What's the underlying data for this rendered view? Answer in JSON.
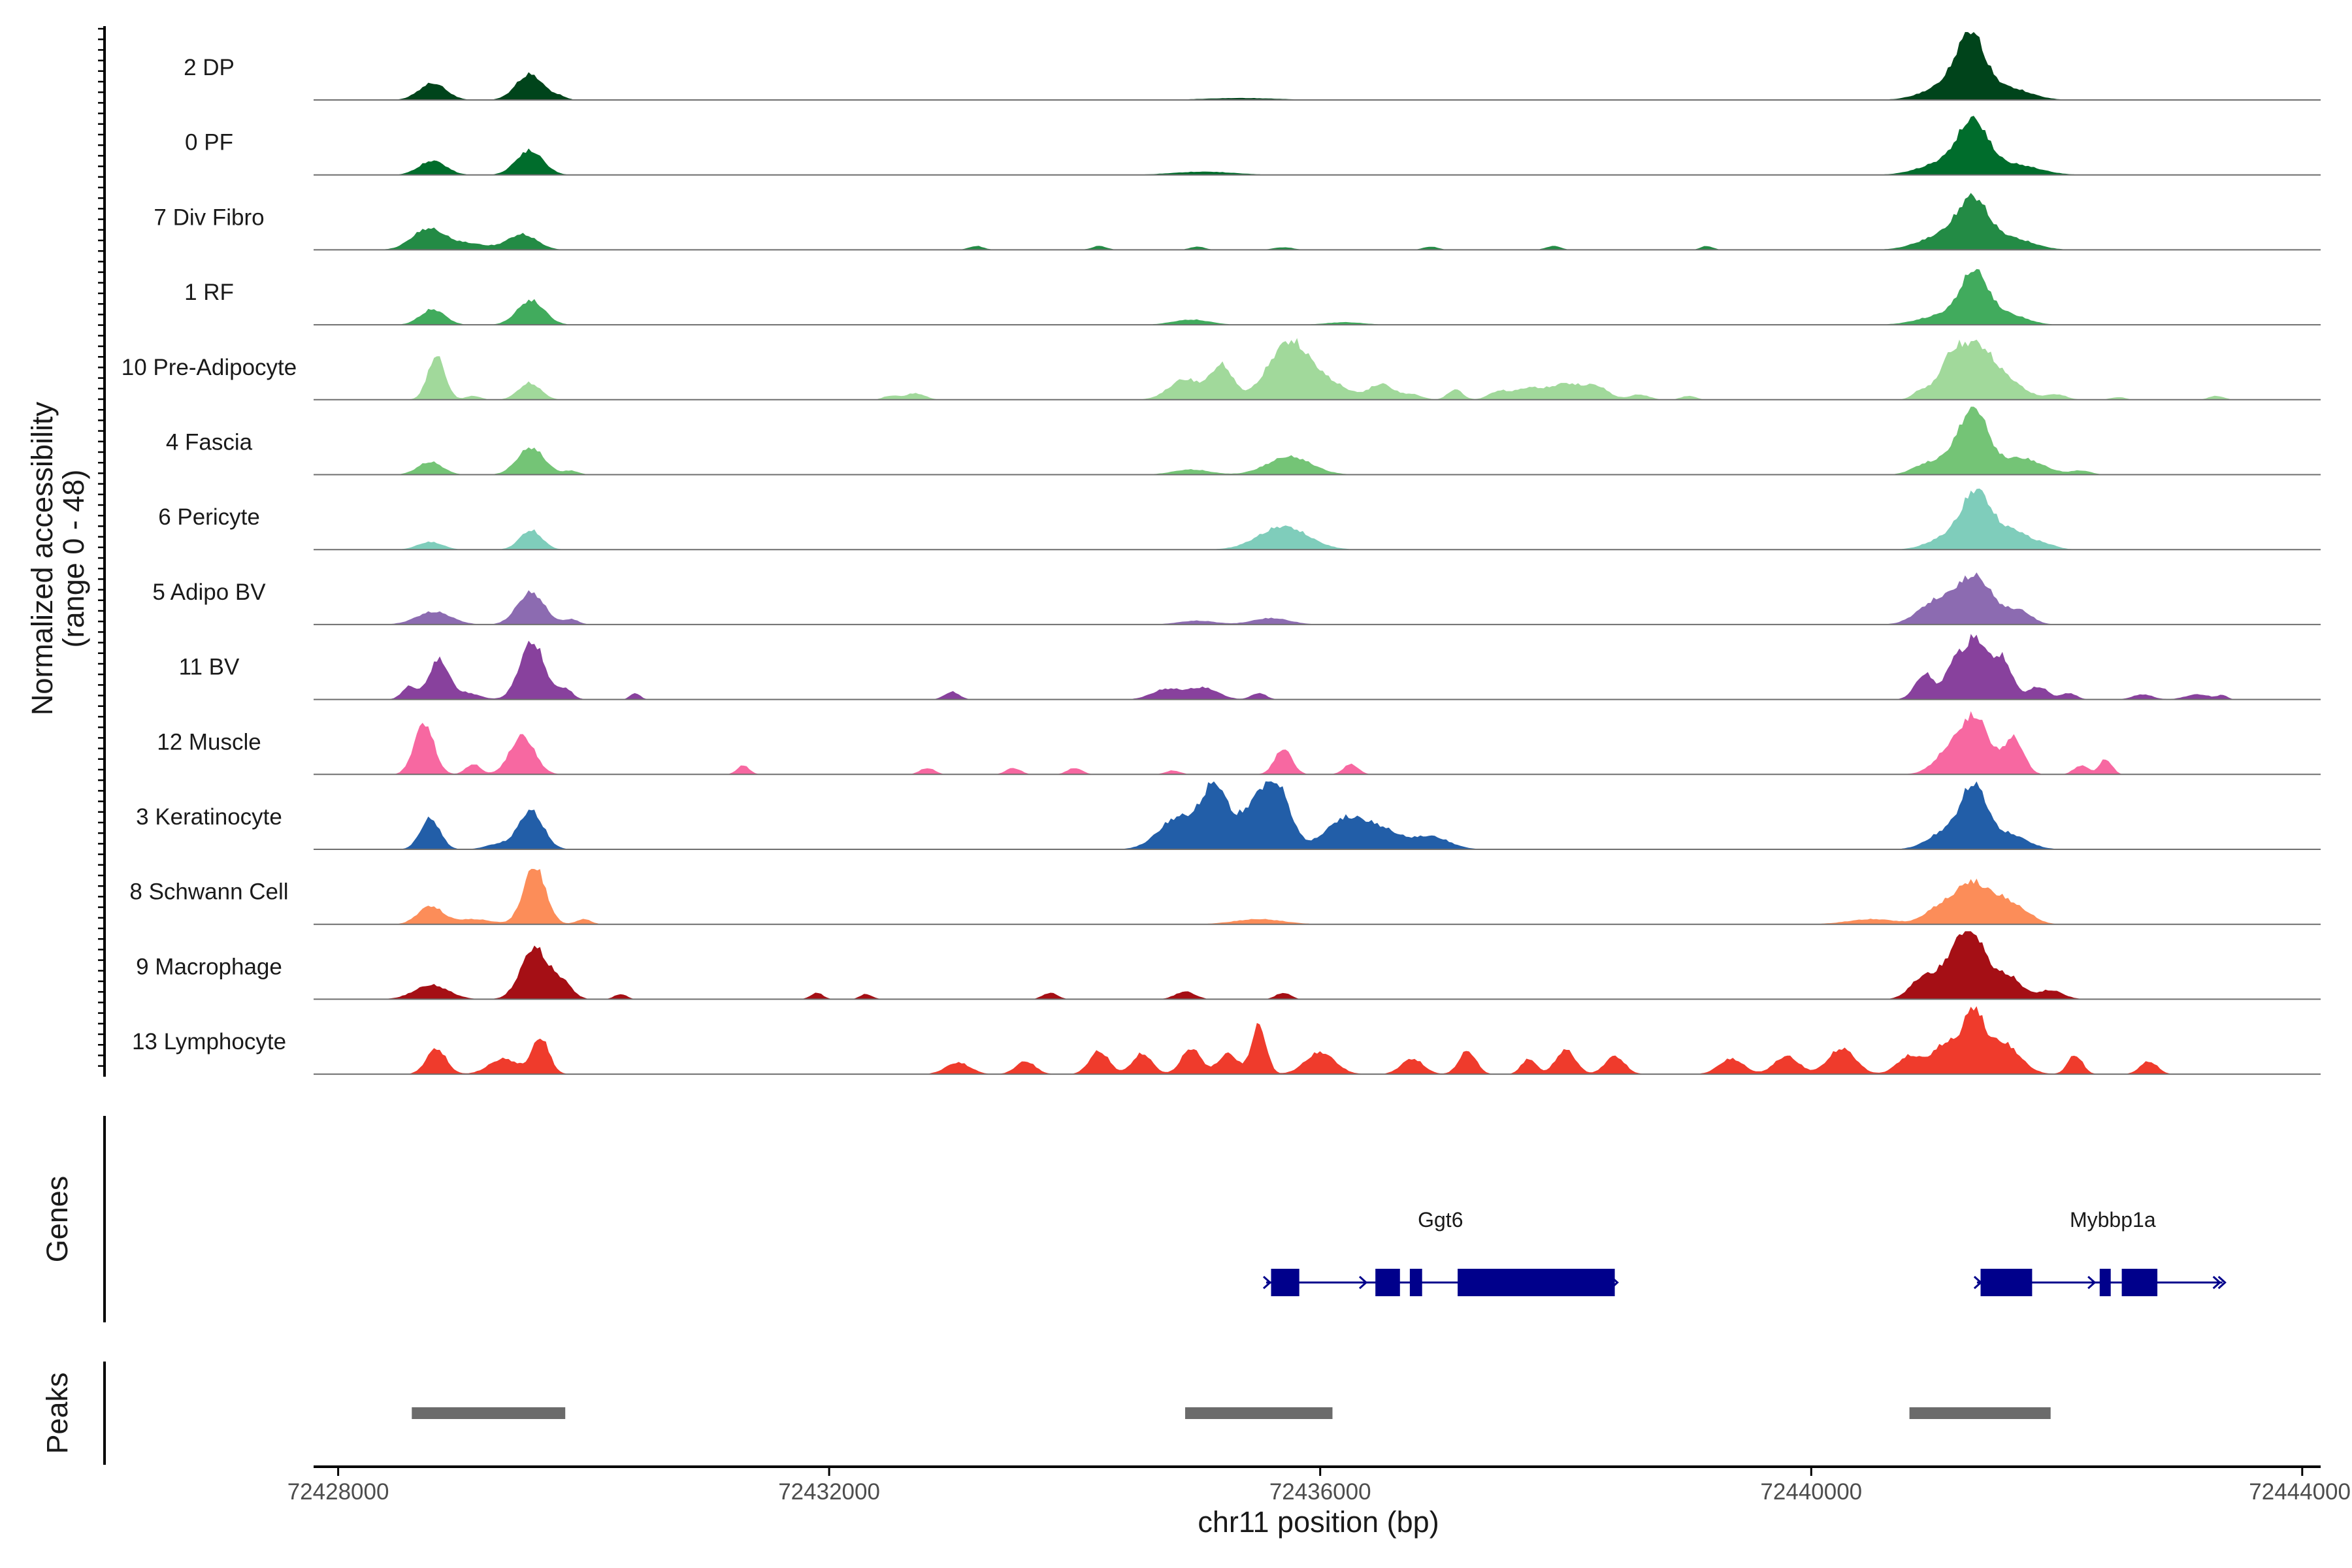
{
  "chart_data": {
    "type": "area",
    "title": "",
    "chromosome": "chr11",
    "xlabel": "chr11 position (bp)",
    "ylabel": "Normalized accessibility",
    "ylabel_range": "(range 0 - 48)",
    "ylim": [
      0,
      48
    ],
    "xlim": [
      72427800,
      72444150
    ],
    "x_ticks": [
      72428000,
      72432000,
      72436000,
      72440000,
      72444000
    ],
    "x_tick_labels": [
      "72428000",
      "72432000",
      "72436000",
      "72440000",
      "72444000"
    ],
    "genes_label": "Genes",
    "peaks_label": "Peaks",
    "tracks": [
      {
        "name": "2 DP",
        "color": "#00441b",
        "peaks": [
          [
            72428770,
            13,
            110
          ],
          [
            72429560,
            20,
            110
          ],
          [
            72429800,
            2.5,
            60
          ],
          [
            72435350,
            1.5,
            300
          ],
          [
            72441150,
            13,
            200
          ],
          [
            72441300,
            42,
            110
          ],
          [
            72441600,
            9,
            180
          ]
        ]
      },
      {
        "name": "0 PF",
        "color": "#006d2c",
        "peaks": [
          [
            72428770,
            11,
            110
          ],
          [
            72429560,
            19,
            110
          ],
          [
            72435050,
            2.5,
            250
          ],
          [
            72441100,
            10,
            200
          ],
          [
            72441320,
            36,
            120
          ],
          [
            72441650,
            8,
            200
          ]
        ]
      },
      {
        "name": "7 Div Fibro",
        "color": "#238b45",
        "peaks": [
          [
            72428730,
            16,
            130
          ],
          [
            72429050,
            5,
            160
          ],
          [
            72429500,
            12,
            120
          ],
          [
            72433200,
            3,
            60
          ],
          [
            72434200,
            3,
            60
          ],
          [
            72435000,
            2.5,
            60
          ],
          [
            72435700,
            2,
            80
          ],
          [
            72436900,
            2.5,
            60
          ],
          [
            72437900,
            3,
            60
          ],
          [
            72439150,
            3,
            50
          ],
          [
            72441100,
            12,
            200
          ],
          [
            72441320,
            33,
            120
          ],
          [
            72441620,
            9,
            180
          ]
        ]
      },
      {
        "name": "1 RF",
        "color": "#41ab5d",
        "peaks": [
          [
            72428770,
            12,
            100
          ],
          [
            72429570,
            19,
            110
          ],
          [
            72434950,
            4,
            150
          ],
          [
            72436200,
            2,
            150
          ],
          [
            72441100,
            8,
            200
          ],
          [
            72441330,
            37,
            110
          ],
          [
            72441600,
            8,
            150
          ]
        ]
      },
      {
        "name": "10 Pre-Adipocyte",
        "color": "#a1d99b",
        "peaks": [
          [
            72428800,
            34,
            70
          ],
          [
            72429100,
            3,
            60
          ],
          [
            72429560,
            13,
            90
          ],
          [
            72432500,
            3,
            60
          ],
          [
            72432700,
            5,
            80
          ],
          [
            72434900,
            16,
            130
          ],
          [
            72435200,
            26,
            90
          ],
          [
            72435750,
            45,
            170
          ],
          [
            72436100,
            10,
            150
          ],
          [
            72436500,
            12,
            100
          ],
          [
            72436750,
            4,
            80
          ],
          [
            72437100,
            8,
            60
          ],
          [
            72437450,
            6,
            80
          ],
          [
            72437700,
            9,
            120
          ],
          [
            72438000,
            12,
            120
          ],
          [
            72438250,
            10,
            100
          ],
          [
            72438600,
            4,
            80
          ],
          [
            72439000,
            3,
            60
          ],
          [
            72440900,
            7,
            70
          ],
          [
            72441120,
            20,
            90
          ],
          [
            72441330,
            42,
            150
          ],
          [
            72441620,
            11,
            140
          ],
          [
            72442000,
            4,
            80
          ],
          [
            72442500,
            2,
            60
          ],
          [
            72443300,
            3,
            60
          ]
        ]
      },
      {
        "name": "4 Fascia",
        "color": "#74c476",
        "peaks": [
          [
            72428750,
            10,
            100
          ],
          [
            72429570,
            21,
            110
          ],
          [
            72429900,
            3,
            60
          ],
          [
            72434950,
            4,
            150
          ],
          [
            72435750,
            14,
            180
          ],
          [
            72440900,
            5,
            100
          ],
          [
            72441150,
            13,
            150
          ],
          [
            72441330,
            45,
            110
          ],
          [
            72441700,
            13,
            180
          ],
          [
            72442200,
            3,
            80
          ]
        ]
      },
      {
        "name": "6 Pericyte",
        "color": "#7fcdbb",
        "peaks": [
          [
            72428750,
            6,
            100
          ],
          [
            72429570,
            15,
            90
          ],
          [
            72435700,
            18,
            200
          ],
          [
            72441100,
            9,
            150
          ],
          [
            72441350,
            44,
            120
          ],
          [
            72441650,
            14,
            120
          ],
          [
            72441900,
            4,
            100
          ]
        ]
      },
      {
        "name": "5 Adipo BV",
        "color": "#8c6bb1",
        "peaks": [
          [
            72428780,
            10,
            140
          ],
          [
            72429570,
            25,
            110
          ],
          [
            72429900,
            4,
            60
          ],
          [
            72435000,
            3,
            150
          ],
          [
            72435600,
            5,
            150
          ],
          [
            72441000,
            16,
            140
          ],
          [
            72441330,
            37,
            150
          ],
          [
            72441700,
            10,
            100
          ]
        ]
      },
      {
        "name": "11 BV",
        "color": "#88419d",
        "peaks": [
          [
            72428580,
            10,
            60
          ],
          [
            72428820,
            31,
            80
          ],
          [
            72429050,
            5,
            100
          ],
          [
            72429580,
            45,
            100
          ],
          [
            72429850,
            8,
            60
          ],
          [
            72430420,
            5,
            40
          ],
          [
            72433000,
            6,
            60
          ],
          [
            72434750,
            8,
            120
          ],
          [
            72435050,
            9,
            120
          ],
          [
            72435500,
            5,
            60
          ],
          [
            72440930,
            20,
            80
          ],
          [
            72441150,
            22,
            60
          ],
          [
            72441330,
            48,
            100
          ],
          [
            72441560,
            30,
            80
          ],
          [
            72441850,
            10,
            80
          ],
          [
            72442100,
            5,
            60
          ],
          [
            72442700,
            4,
            80
          ],
          [
            72443150,
            4,
            100
          ],
          [
            72443350,
            3,
            40
          ]
        ]
      },
      {
        "name": "12 Muscle",
        "color": "#f768a1",
        "peaks": [
          [
            72428700,
            40,
            80
          ],
          [
            72429100,
            8,
            60
          ],
          [
            72429500,
            30,
            100
          ],
          [
            72431300,
            7,
            50
          ],
          [
            72432800,
            5,
            60
          ],
          [
            72433500,
            5,
            60
          ],
          [
            72434000,
            5,
            60
          ],
          [
            72434800,
            3,
            60
          ],
          [
            72435700,
            20,
            70
          ],
          [
            72436250,
            8,
            60
          ],
          [
            72441150,
            20,
            130
          ],
          [
            72441350,
            39,
            110
          ],
          [
            72441650,
            28,
            80
          ],
          [
            72442200,
            7,
            60
          ],
          [
            72442400,
            12,
            50
          ]
        ]
      },
      {
        "name": "3 Keratinocyte",
        "color": "#225ea8",
        "peaks": [
          [
            72428750,
            24,
            80
          ],
          [
            72429300,
            4,
            100
          ],
          [
            72429570,
            30,
            100
          ],
          [
            72434850,
            25,
            160
          ],
          [
            72435140,
            46,
            100
          ],
          [
            72435450,
            30,
            130
          ],
          [
            72435650,
            44,
            110
          ],
          [
            72436200,
            23,
            160
          ],
          [
            72436500,
            14,
            150
          ],
          [
            72436900,
            10,
            150
          ],
          [
            72441120,
            15,
            150
          ],
          [
            72441330,
            44,
            100
          ],
          [
            72441600,
            12,
            150
          ]
        ]
      },
      {
        "name": "8 Schwann Cell",
        "color": "#fc8d59",
        "peaks": [
          [
            72428750,
            14,
            100
          ],
          [
            72429100,
            4,
            150
          ],
          [
            72429600,
            45,
            90
          ],
          [
            72430000,
            4,
            60
          ],
          [
            72435500,
            4,
            200
          ],
          [
            72440500,
            4,
            200
          ],
          [
            72441050,
            13,
            120
          ],
          [
            72441300,
            30,
            120
          ],
          [
            72441550,
            18,
            120
          ],
          [
            72441750,
            6,
            100
          ]
        ]
      },
      {
        "name": "9 Macrophage",
        "color": "#a50f15",
        "peaks": [
          [
            72428760,
            11,
            140
          ],
          [
            72429600,
            40,
            110
          ],
          [
            72429830,
            12,
            80
          ],
          [
            72430300,
            4,
            50
          ],
          [
            72431900,
            5,
            50
          ],
          [
            72432300,
            4,
            50
          ],
          [
            72433800,
            5,
            60
          ],
          [
            72434900,
            6,
            80
          ],
          [
            72435700,
            5,
            60
          ],
          [
            72440900,
            15,
            100
          ],
          [
            72441150,
            26,
            120
          ],
          [
            72441320,
            44,
            110
          ],
          [
            72441600,
            18,
            110
          ],
          [
            72441950,
            7,
            100
          ]
        ]
      },
      {
        "name": "13 Lymphocyte",
        "color": "#ef3b2c",
        "peaks": [
          [
            72428800,
            20,
            80
          ],
          [
            72429350,
            12,
            120
          ],
          [
            72429650,
            28,
            70
          ],
          [
            72433050,
            9,
            100
          ],
          [
            72433600,
            10,
            80
          ],
          [
            72434200,
            18,
            80
          ],
          [
            72434550,
            16,
            80
          ],
          [
            72434950,
            20,
            80
          ],
          [
            72435250,
            16,
            80
          ],
          [
            72435500,
            38,
            60
          ],
          [
            72436000,
            17,
            120
          ],
          [
            72436750,
            12,
            90
          ],
          [
            72437200,
            18,
            70
          ],
          [
            72437700,
            12,
            60
          ],
          [
            72438000,
            19,
            80
          ],
          [
            72438400,
            14,
            80
          ],
          [
            72439350,
            12,
            100
          ],
          [
            72439800,
            14,
            100
          ],
          [
            72440250,
            20,
            110
          ],
          [
            72440800,
            14,
            100
          ],
          [
            72441100,
            24,
            110
          ],
          [
            72441320,
            43,
            80
          ],
          [
            72441550,
            25,
            140
          ],
          [
            72442150,
            15,
            60
          ],
          [
            72442750,
            10,
            70
          ]
        ]
      }
    ],
    "genes": [
      {
        "name": "Ggt6",
        "strand": "+",
        "start": 72435560,
        "end": 72438400,
        "exons": [
          [
            72435600,
            72435830
          ],
          [
            72436450,
            72436650
          ],
          [
            72436730,
            72436830
          ],
          [
            72437120,
            72438400
          ]
        ]
      },
      {
        "name": "Mybbp1a",
        "strand": "+",
        "start": 72441350,
        "end": 72443350,
        "exons": [
          [
            72441380,
            72441800
          ],
          [
            72442350,
            72442440
          ],
          [
            72442530,
            72442820
          ]
        ]
      }
    ],
    "peak_regions": [
      [
        72428600,
        72429850
      ],
      [
        72434900,
        72436100
      ],
      [
        72440800,
        72441950
      ]
    ]
  }
}
